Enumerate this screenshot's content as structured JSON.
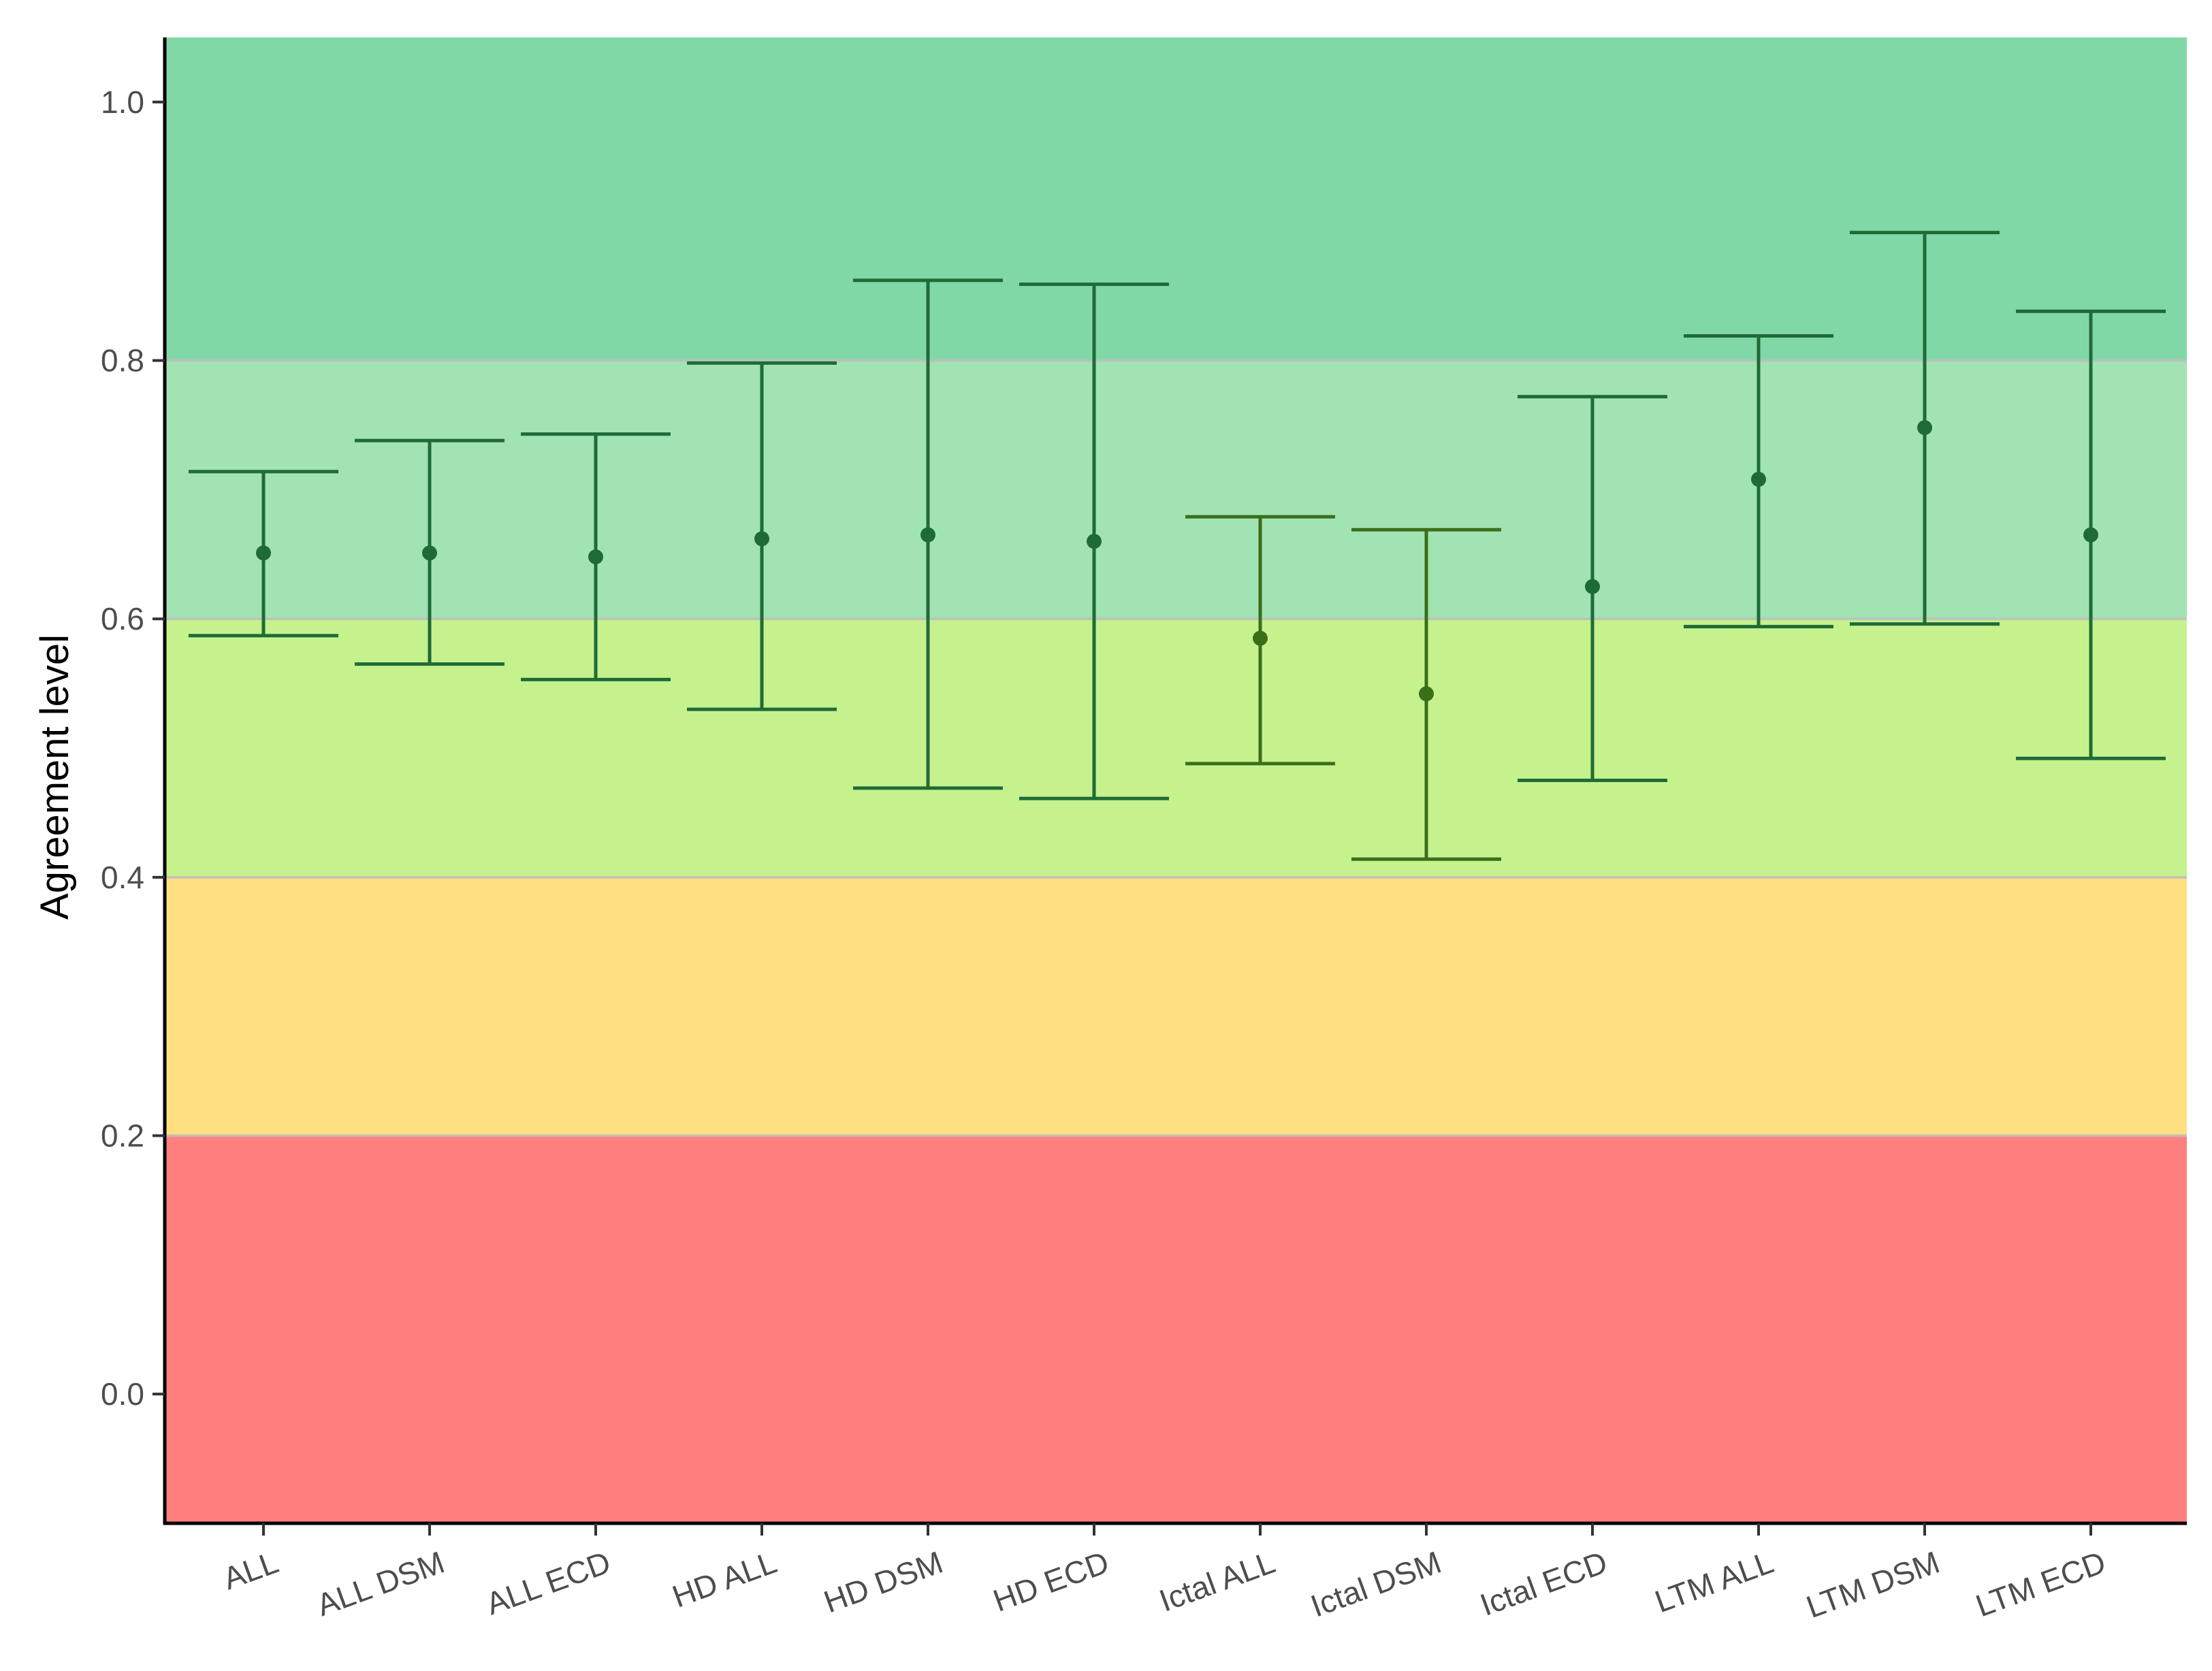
{
  "chart_data": {
    "type": "errorbar",
    "title": "",
    "xlabel": "",
    "ylabel": "Agreement level",
    "ylim": [
      -0.1,
      1.05
    ],
    "yticks": [
      0.0,
      0.2,
      0.4,
      0.6,
      0.8,
      1.0
    ],
    "ytick_labels": [
      "0.0",
      "0.2",
      "0.4",
      "0.6",
      "0.8",
      "1.0"
    ],
    "grid": false,
    "legend": "none",
    "categories": [
      "ALL",
      "ALL DSM",
      "ALL ECD",
      "HD ALL",
      "HD DSM",
      "HD ECD",
      "Ictal ALL",
      "Ictal DSM",
      "Ictal ECD",
      "LTM ALL",
      "LTM DSM",
      "LTM ECD"
    ],
    "estimate": [
      0.651,
      0.651,
      0.648,
      0.662,
      0.665,
      0.66,
      0.585,
      0.542,
      0.625,
      0.708,
      0.748,
      0.665
    ],
    "lower": [
      0.587,
      0.565,
      0.553,
      0.53,
      0.469,
      0.461,
      0.488,
      0.414,
      0.475,
      0.594,
      0.596,
      0.492
    ],
    "upper": [
      0.714,
      0.738,
      0.743,
      0.798,
      0.862,
      0.859,
      0.679,
      0.669,
      0.772,
      0.819,
      0.899,
      0.838
    ],
    "bands": [
      {
        "from": -0.1,
        "to": 0.2,
        "color": "#ff7f7f"
      },
      {
        "from": 0.2,
        "to": 0.4,
        "color": "#ffdf80"
      },
      {
        "from": 0.4,
        "to": 0.6,
        "color": "#c5f28d"
      },
      {
        "from": 0.6,
        "to": 0.8,
        "color": "#a2e3b3"
      },
      {
        "from": 0.8,
        "to": 1.05,
        "color": "#80d8a6"
      }
    ],
    "colors": {
      "bar_on_green": "#1f6b38",
      "bar_on_lime": "#3a6f1a",
      "band_border": "#bdbdbd"
    }
  }
}
